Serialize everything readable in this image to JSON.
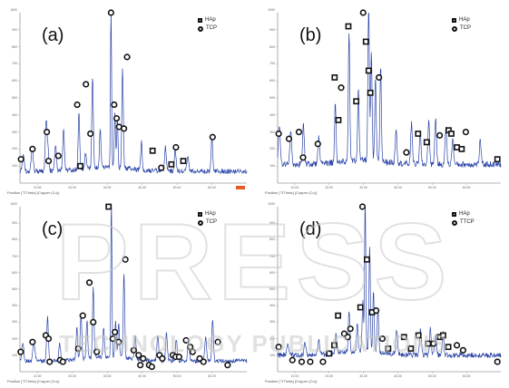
{
  "chart_data": [
    {
      "type": "line",
      "title": "",
      "panel_label": "(a)",
      "xlabel": "Position [°2Theta] (Copper (Cu))",
      "ylabel": "",
      "xlim": [
        5,
        70
      ],
      "ylim": [
        0,
        1000
      ],
      "xticks": [
        "10.00",
        "20.00",
        "30.00",
        "40.00",
        "50.00",
        "60.00"
      ],
      "yticks": [
        "100",
        "200",
        "300",
        "400",
        "500",
        "600",
        "700",
        "800",
        "900"
      ],
      "ytop_label": "1000",
      "legend": [
        "HAp",
        "TCP"
      ],
      "legend_position": "top-right",
      "show_red_marker": true,
      "baseline": 70,
      "noise": 14,
      "peaks": [
        [
          6.0,
          90,
          0.4
        ],
        [
          8.5,
          140,
          0.4
        ],
        [
          12.5,
          290,
          0.35
        ],
        [
          13.0,
          120,
          0.35
        ],
        [
          15.2,
          160,
          0.35
        ],
        [
          17.5,
          240,
          0.35
        ],
        [
          21.9,
          330,
          0.3
        ],
        [
          23.8,
          90,
          0.3
        ],
        [
          25.8,
          540,
          0.3
        ],
        [
          28.0,
          230,
          0.3
        ],
        [
          31.1,
          960,
          0.22
        ],
        [
          32.2,
          330,
          0.25
        ],
        [
          32.9,
          300,
          0.25
        ],
        [
          34.4,
          580,
          0.3
        ],
        [
          39.8,
          160,
          0.3
        ],
        [
          46.7,
          140,
          0.35
        ],
        [
          49.5,
          130,
          0.35
        ],
        [
          53.1,
          90,
          0.35
        ],
        [
          60.0,
          220,
          0.3
        ]
      ],
      "markers": [
        {
          "x": 5.3,
          "y": 140,
          "sym": "c"
        },
        {
          "x": 8.6,
          "y": 200,
          "sym": "c"
        },
        {
          "x": 12.7,
          "y": 300,
          "sym": "c"
        },
        {
          "x": 13.2,
          "y": 130,
          "sym": "c"
        },
        {
          "x": 16.0,
          "y": 160,
          "sym": "c"
        },
        {
          "x": 21.4,
          "y": 460,
          "sym": "c"
        },
        {
          "x": 22.3,
          "y": 100,
          "sym": "s"
        },
        {
          "x": 23.9,
          "y": 580,
          "sym": "c"
        },
        {
          "x": 25.2,
          "y": 290,
          "sym": "c"
        },
        {
          "x": 31.1,
          "y": 1000,
          "sym": "c"
        },
        {
          "x": 32.0,
          "y": 460,
          "sym": "c"
        },
        {
          "x": 32.7,
          "y": 380,
          "sym": "c"
        },
        {
          "x": 33.4,
          "y": 330,
          "sym": "c"
        },
        {
          "x": 34.8,
          "y": 320,
          "sym": "c"
        },
        {
          "x": 35.7,
          "y": 740,
          "sym": "c"
        },
        {
          "x": 43.0,
          "y": 190,
          "sym": "s"
        },
        {
          "x": 45.5,
          "y": 90,
          "sym": "c"
        },
        {
          "x": 48.4,
          "y": 110,
          "sym": "s"
        },
        {
          "x": 49.7,
          "y": 210,
          "sym": "c"
        },
        {
          "x": 51.8,
          "y": 130,
          "sym": "s"
        },
        {
          "x": 60.2,
          "y": 270,
          "sym": "c"
        }
      ]
    },
    {
      "type": "line",
      "title": "",
      "panel_label": "(b)",
      "xlabel": "Position [°2Theta] (Copper (Cu))",
      "ylabel": "",
      "xlim": [
        5,
        70
      ],
      "ylim": [
        0,
        1000
      ],
      "xticks": [
        "10.00",
        "20.00",
        "30.00",
        "40.00",
        "50.00",
        "60.00"
      ],
      "yticks": [
        "100",
        "200",
        "300",
        "400",
        "500",
        "600",
        "700",
        "800",
        "900"
      ],
      "ytop_label": "1000",
      "legend": [
        "HAp",
        "TCP"
      ],
      "legend_position": "top-right",
      "show_red_marker": false,
      "baseline": 110,
      "noise": 18,
      "peaks": [
        [
          5.5,
          220,
          0.4
        ],
        [
          8.8,
          190,
          0.4
        ],
        [
          12.5,
          230,
          0.35
        ],
        [
          17.0,
          160,
          0.35
        ],
        [
          21.8,
          360,
          0.3
        ],
        [
          25.8,
          760,
          0.3
        ],
        [
          28.5,
          420,
          0.3
        ],
        [
          31.5,
          900,
          0.3
        ],
        [
          32.3,
          620,
          0.3
        ],
        [
          33.5,
          480,
          0.3
        ],
        [
          35.0,
          560,
          0.3
        ],
        [
          39.5,
          200,
          0.35
        ],
        [
          44.0,
          240,
          0.35
        ],
        [
          46.5,
          180,
          0.35
        ],
        [
          49.0,
          250,
          0.35
        ],
        [
          51.0,
          270,
          0.35
        ],
        [
          54.0,
          220,
          0.35
        ],
        [
          56.0,
          160,
          0.35
        ],
        [
          64.0,
          140,
          0.35
        ]
      ],
      "markers": [
        {
          "x": 5.3,
          "y": 290,
          "sym": "c"
        },
        {
          "x": 8.3,
          "y": 260,
          "sym": "c"
        },
        {
          "x": 11.2,
          "y": 300,
          "sym": "c"
        },
        {
          "x": 12.4,
          "y": 150,
          "sym": "c"
        },
        {
          "x": 16.7,
          "y": 230,
          "sym": "c"
        },
        {
          "x": 21.6,
          "y": 620,
          "sym": "s"
        },
        {
          "x": 22.7,
          "y": 370,
          "sym": "s"
        },
        {
          "x": 23.5,
          "y": 560,
          "sym": "c"
        },
        {
          "x": 25.6,
          "y": 920,
          "sym": "s"
        },
        {
          "x": 27.9,
          "y": 480,
          "sym": "s"
        },
        {
          "x": 29.9,
          "y": 1000,
          "sym": "c"
        },
        {
          "x": 30.7,
          "y": 830,
          "sym": "s"
        },
        {
          "x": 31.5,
          "y": 660,
          "sym": "s"
        },
        {
          "x": 32.0,
          "y": 530,
          "sym": "s"
        },
        {
          "x": 34.5,
          "y": 620,
          "sym": "c"
        },
        {
          "x": 42.5,
          "y": 180,
          "sym": "c"
        },
        {
          "x": 45.9,
          "y": 290,
          "sym": "s"
        },
        {
          "x": 48.4,
          "y": 240,
          "sym": "s"
        },
        {
          "x": 52.2,
          "y": 280,
          "sym": "c"
        },
        {
          "x": 54.8,
          "y": 310,
          "sym": "s"
        },
        {
          "x": 55.6,
          "y": 290,
          "sym": "s"
        },
        {
          "x": 57.2,
          "y": 210,
          "sym": "s"
        },
        {
          "x": 58.6,
          "y": 200,
          "sym": "s"
        },
        {
          "x": 59.8,
          "y": 300,
          "sym": "c"
        },
        {
          "x": 69.0,
          "y": 140,
          "sym": "s"
        }
      ]
    },
    {
      "type": "line",
      "title": "",
      "panel_label": "(c)",
      "xlabel": "Position [°2Theta] (Copper (Cu))",
      "ylabel": "",
      "xlim": [
        5,
        70
      ],
      "ylim": [
        0,
        1000
      ],
      "xticks": [
        "10.00",
        "20.00",
        "30.00",
        "40.00",
        "50.00",
        "60.00"
      ],
      "yticks": [
        "100",
        "200",
        "300",
        "400",
        "500",
        "600",
        "700",
        "800",
        "900"
      ],
      "ytop_label": "1000",
      "legend": [
        "HAp",
        "TCP"
      ],
      "legend_position": "top-right",
      "show_red_marker": false,
      "baseline": 65,
      "noise": 12,
      "peaks": [
        [
          5.8,
          110,
          0.4
        ],
        [
          9.0,
          120,
          0.4
        ],
        [
          12.9,
          260,
          0.35
        ],
        [
          16.4,
          100,
          0.35
        ],
        [
          21.3,
          190,
          0.3
        ],
        [
          22.5,
          280,
          0.3
        ],
        [
          24.2,
          230,
          0.3
        ],
        [
          26.0,
          430,
          0.3
        ],
        [
          29.0,
          170,
          0.3
        ],
        [
          31.2,
          980,
          0.22
        ],
        [
          32.4,
          220,
          0.3
        ],
        [
          33.3,
          200,
          0.3
        ],
        [
          34.8,
          520,
          0.3
        ],
        [
          38.0,
          140,
          0.35
        ],
        [
          44.5,
          160,
          0.35
        ],
        [
          47.0,
          170,
          0.35
        ],
        [
          49.8,
          130,
          0.35
        ],
        [
          53.3,
          120,
          0.35
        ],
        [
          58.2,
          140,
          0.35
        ],
        [
          60.2,
          260,
          0.3
        ]
      ],
      "markers": [
        {
          "x": 5.2,
          "y": 120,
          "sym": "c"
        },
        {
          "x": 8.6,
          "y": 180,
          "sym": "c"
        },
        {
          "x": 12.4,
          "y": 220,
          "sym": "c"
        },
        {
          "x": 13.2,
          "y": 200,
          "sym": "c"
        },
        {
          "x": 13.5,
          "y": 60,
          "sym": "c"
        },
        {
          "x": 16.5,
          "y": 70,
          "sym": "c"
        },
        {
          "x": 17.3,
          "y": 60,
          "sym": "c"
        },
        {
          "x": 21.7,
          "y": 140,
          "sym": "c"
        },
        {
          "x": 23.0,
          "y": 340,
          "sym": "c"
        },
        {
          "x": 24.9,
          "y": 540,
          "sym": "c"
        },
        {
          "x": 26.0,
          "y": 300,
          "sym": "c"
        },
        {
          "x": 27.0,
          "y": 120,
          "sym": "c"
        },
        {
          "x": 30.4,
          "y": 1000,
          "sym": "s"
        },
        {
          "x": 31.6,
          "y": 200,
          "sym": "c"
        },
        {
          "x": 32.2,
          "y": 240,
          "sym": "c"
        },
        {
          "x": 33.3,
          "y": 180,
          "sym": "c"
        },
        {
          "x": 35.2,
          "y": 680,
          "sym": "c"
        },
        {
          "x": 37.6,
          "y": 130,
          "sym": "c"
        },
        {
          "x": 39.0,
          "y": 100,
          "sym": "c"
        },
        {
          "x": 39.5,
          "y": 40,
          "sym": "c"
        },
        {
          "x": 40.3,
          "y": 80,
          "sym": "c"
        },
        {
          "x": 42.0,
          "y": 40,
          "sym": "c"
        },
        {
          "x": 42.8,
          "y": 30,
          "sym": "c"
        },
        {
          "x": 45.0,
          "y": 100,
          "sym": "c"
        },
        {
          "x": 45.8,
          "y": 80,
          "sym": "c"
        },
        {
          "x": 48.8,
          "y": 100,
          "sym": "c"
        },
        {
          "x": 49.6,
          "y": 90,
          "sym": "c"
        },
        {
          "x": 50.6,
          "y": 90,
          "sym": "c"
        },
        {
          "x": 52.6,
          "y": 190,
          "sym": "c"
        },
        {
          "x": 53.8,
          "y": 150,
          "sym": "c"
        },
        {
          "x": 54.5,
          "y": 120,
          "sym": "c"
        },
        {
          "x": 56.5,
          "y": 80,
          "sym": "c"
        },
        {
          "x": 57.6,
          "y": 60,
          "sym": "c"
        },
        {
          "x": 61.7,
          "y": 180,
          "sym": "c"
        },
        {
          "x": 64.5,
          "y": 40,
          "sym": "c"
        }
      ]
    },
    {
      "type": "line",
      "title": "",
      "panel_label": "(d)",
      "xlabel": "Position [°2Theta] (Copper (Cu))",
      "ylabel": "",
      "xlim": [
        5,
        70
      ],
      "ylim": [
        0,
        1000
      ],
      "xticks": [
        "10.00",
        "20.00",
        "30.00",
        "40.00",
        "50.00",
        "60.00"
      ],
      "yticks": [
        "100",
        "200",
        "300",
        "400",
        "500",
        "600",
        "700",
        "800",
        "900"
      ],
      "ytop_label": "1000",
      "legend": [
        "HAp",
        "TTCP"
      ],
      "legend_position": "top-right",
      "show_red_marker": false,
      "baseline": 100,
      "noise": 16,
      "peaks": [
        [
          8.0,
          60,
          0.45
        ],
        [
          13.0,
          70,
          0.4
        ],
        [
          17.0,
          80,
          0.4
        ],
        [
          22.0,
          120,
          0.35
        ],
        [
          25.8,
          260,
          0.3
        ],
        [
          28.2,
          180,
          0.3
        ],
        [
          29.8,
          300,
          0.3
        ],
        [
          30.5,
          920,
          0.25
        ],
        [
          31.8,
          640,
          0.28
        ],
        [
          32.9,
          360,
          0.3
        ],
        [
          34.2,
          270,
          0.3
        ],
        [
          39.7,
          140,
          0.35
        ],
        [
          46.6,
          150,
          0.35
        ],
        [
          49.5,
          160,
          0.35
        ],
        [
          51.0,
          120,
          0.35
        ],
        [
          53.2,
          130,
          0.35
        ]
      ],
      "markers": [
        {
          "x": 5.3,
          "y": 150,
          "sym": "c"
        },
        {
          "x": 9.3,
          "y": 70,
          "sym": "c"
        },
        {
          "x": 12.0,
          "y": 60,
          "sym": "c"
        },
        {
          "x": 14.5,
          "y": 60,
          "sym": "c"
        },
        {
          "x": 18.2,
          "y": 60,
          "sym": "c"
        },
        {
          "x": 20.0,
          "y": 110,
          "sym": "s"
        },
        {
          "x": 21.5,
          "y": 160,
          "sym": "s"
        },
        {
          "x": 22.6,
          "y": 340,
          "sym": "s"
        },
        {
          "x": 24.4,
          "y": 230,
          "sym": "c"
        },
        {
          "x": 25.4,
          "y": 210,
          "sym": "c"
        },
        {
          "x": 26.2,
          "y": 260,
          "sym": "c"
        },
        {
          "x": 29.1,
          "y": 390,
          "sym": "s"
        },
        {
          "x": 29.7,
          "y": 1000,
          "sym": "c"
        },
        {
          "x": 31.0,
          "y": 680,
          "sym": "s"
        },
        {
          "x": 32.5,
          "y": 360,
          "sym": "s"
        },
        {
          "x": 33.7,
          "y": 370,
          "sym": "c"
        },
        {
          "x": 35.5,
          "y": 200,
          "sym": "c"
        },
        {
          "x": 37.2,
          "y": 140,
          "sym": "s"
        },
        {
          "x": 41.8,
          "y": 210,
          "sym": "s"
        },
        {
          "x": 43.8,
          "y": 140,
          "sym": "s"
        },
        {
          "x": 46.0,
          "y": 220,
          "sym": "s"
        },
        {
          "x": 48.8,
          "y": 170,
          "sym": "s"
        },
        {
          "x": 50.4,
          "y": 170,
          "sym": "c"
        },
        {
          "x": 52.3,
          "y": 210,
          "sym": "s"
        },
        {
          "x": 53.2,
          "y": 220,
          "sym": "s"
        },
        {
          "x": 54.7,
          "y": 150,
          "sym": "s"
        },
        {
          "x": 57.2,
          "y": 160,
          "sym": "c"
        },
        {
          "x": 59.0,
          "y": 130,
          "sym": "c"
        },
        {
          "x": 69.0,
          "y": 60,
          "sym": "c"
        }
      ]
    }
  ],
  "colors": {
    "trace": "#2b45a8",
    "axis": "#9a9a9a",
    "marker_stroke": "#111111",
    "accent_red": "#e8592d",
    "watermark": "#c9c9c9"
  },
  "watermark_text": {
    "main": "PRESS",
    "sub": "TECHNOLOGY PUBLICATIONS"
  }
}
